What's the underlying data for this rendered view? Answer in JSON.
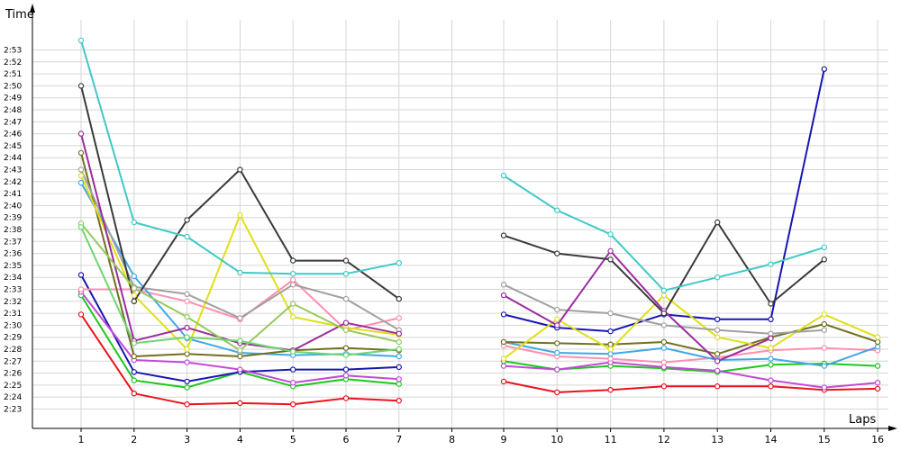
{
  "chart_data": {
    "type": "line",
    "title": "",
    "xlabel": "Laps",
    "ylabel": "Time",
    "x": [
      1,
      2,
      3,
      4,
      5,
      6,
      7,
      8,
      9,
      10,
      11,
      12,
      13,
      14,
      15,
      16
    ],
    "x_tick_labels": [
      "1",
      "2",
      "3",
      "4",
      "5",
      "6",
      "7",
      "8",
      "9",
      "10",
      "11",
      "12",
      "13",
      "14",
      "15",
      "16"
    ],
    "ylim": [
      2.5,
      3.45
    ],
    "y_tick_labels": [
      "2:23",
      "2:24",
      "2:25",
      "2:26",
      "2:27",
      "2:28",
      "2:29",
      "2:30",
      "2:31",
      "2:32",
      "2:33",
      "2:34",
      "2:35",
      "2:36",
      "2:37",
      "2:38",
      "2:39",
      "2:40",
      "2:41",
      "2:42",
      "2:43",
      "2:44",
      "2:45",
      "2:46",
      "2:47",
      "2:48",
      "2:49",
      "2:50",
      "2:51",
      "2:52",
      "2:53"
    ],
    "grid": true,
    "legend": "none",
    "series": [
      {
        "color": "#e8141c",
        "values": [
          150.9,
          144.3,
          143.4,
          143.5,
          143.4,
          143.9,
          143.7,
          null,
          145.3,
          144.4,
          144.6,
          144.9,
          144.9,
          144.9,
          144.6,
          144.7
        ]
      },
      {
        "color": "#1ec71e",
        "values": [
          152.5,
          145.4,
          144.8,
          146.1,
          144.9,
          145.5,
          145.1,
          null,
          147.0,
          146.3,
          146.6,
          146.4,
          146.1,
          146.7,
          146.8,
          146.6
        ]
      },
      {
        "color": "#1717b0",
        "values": [
          154.2,
          146.1,
          145.3,
          146.1,
          146.3,
          146.3,
          146.5,
          null,
          150.9,
          149.8,
          149.5,
          150.9,
          150.5,
          150.5,
          171.4,
          null
        ]
      },
      {
        "color": "#c24ad6",
        "values": [
          152.8,
          147.1,
          146.9,
          146.3,
          145.2,
          145.8,
          145.5,
          null,
          146.6,
          146.3,
          146.9,
          146.5,
          146.2,
          145.4,
          144.8,
          145.2
        ]
      },
      {
        "color": "#ff8fb0",
        "values": [
          153.0,
          153.0,
          152.0,
          150.5,
          153.8,
          149.6,
          150.6,
          null,
          148.3,
          147.4,
          147.2,
          146.9,
          147.3,
          147.9,
          148.1,
          147.9
        ]
      },
      {
        "color": "#40a8e6",
        "values": [
          161.9,
          154.1,
          148.9,
          147.7,
          147.5,
          147.6,
          147.4,
          null,
          148.6,
          147.7,
          147.6,
          148.1,
          147.1,
          147.2,
          146.6,
          148.2
        ]
      },
      {
        "color": "#707020",
        "values": [
          164.4,
          147.4,
          147.6,
          147.4,
          147.9,
          148.1,
          147.9,
          null,
          148.6,
          148.5,
          148.4,
          148.6,
          147.6,
          149.0,
          150.1,
          148.6
        ]
      },
      {
        "color": "#e0e015",
        "values": [
          162.5,
          152.5,
          148.0,
          159.2,
          150.7,
          149.8,
          149.2,
          null,
          147.2,
          150.5,
          148.0,
          152.5,
          149.0,
          148.1,
          150.9,
          149.0
        ]
      },
      {
        "color": "#a0a0a0",
        "values": [
          163.0,
          153.2,
          152.6,
          150.6,
          153.4,
          152.2,
          149.6,
          null,
          153.4,
          151.3,
          151.0,
          150.0,
          149.6,
          149.3,
          149.6,
          null
        ]
      },
      {
        "color": "#9b2d9e",
        "values": [
          166.0,
          148.7,
          149.8,
          148.5,
          147.9,
          150.2,
          149.3,
          null,
          152.5,
          150.0,
          156.2,
          151.2,
          147.0,
          148.9,
          null,
          null
        ]
      },
      {
        "color": "#3a3a3a",
        "values": [
          170.0,
          152.0,
          158.8,
          163.0,
          155.4,
          155.4,
          152.2,
          null,
          157.5,
          156.0,
          155.5,
          151.0,
          158.6,
          151.8,
          155.5,
          null
        ]
      },
      {
        "color": "#40c8c8",
        "values": [
          173.8,
          158.6,
          157.4,
          154.4,
          154.3,
          154.3,
          155.2,
          null,
          162.5,
          159.6,
          157.6,
          152.9,
          154.0,
          155.1,
          156.5,
          null
        ]
      },
      {
        "color": "#98c860",
        "values": [
          158.5,
          153.1,
          150.7,
          147.9,
          151.8,
          149.6,
          148.6,
          null,
          null,
          null,
          null,
          null,
          null,
          null,
          null,
          null
        ]
      },
      {
        "color": "#6ed66e",
        "values": [
          158.2,
          148.5,
          149.0,
          148.7,
          147.8,
          147.5,
          148.0,
          null,
          null,
          null,
          null,
          null,
          null,
          null,
          null,
          null
        ]
      }
    ]
  }
}
